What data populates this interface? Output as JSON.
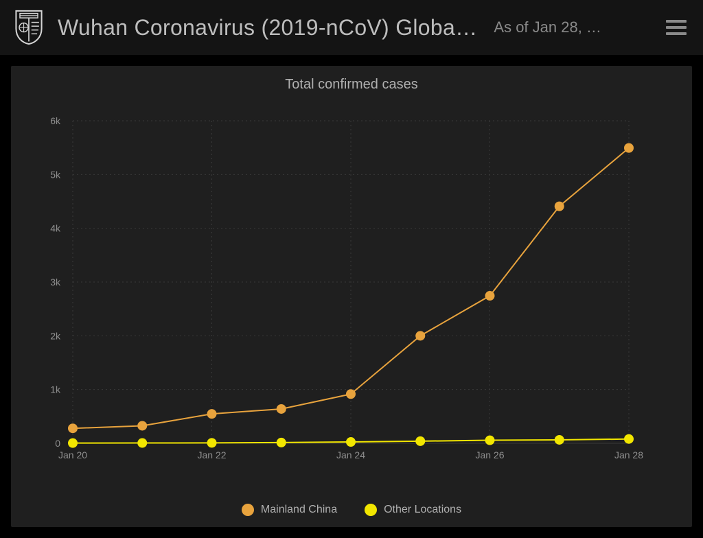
{
  "header": {
    "title": "Wuhan Coronavirus (2019-nCoV) Globa…",
    "subtitle": "As of Jan 28, …"
  },
  "chart": {
    "type": "line",
    "title": "Total confirmed cases",
    "background_color": "#1f1f1f",
    "grid_color": "#3a3a3a",
    "axis_label_color": "#8f8f8f",
    "title_color": "#b0b0b0",
    "title_fontsize": 20,
    "axis_fontsize": 14,
    "x": {
      "categories": [
        "Jan 20",
        "Jan 21",
        "Jan 22",
        "Jan 23",
        "Jan 24",
        "Jan 25",
        "Jan 26",
        "Jan 27",
        "Jan 28"
      ],
      "tick_labels": [
        "Jan 20",
        "Jan 22",
        "Jan 24",
        "Jan 26",
        "Jan 28"
      ],
      "tick_indices": [
        0,
        2,
        4,
        6,
        8
      ]
    },
    "y": {
      "min": 0,
      "max": 6000,
      "ticks": [
        0,
        1000,
        2000,
        3000,
        4000,
        5000,
        6000
      ],
      "tick_labels": [
        "0",
        "1k",
        "2k",
        "3k",
        "4k",
        "5k",
        "6k"
      ]
    },
    "series": [
      {
        "name": "Mainland China",
        "color": "#e8a33d",
        "line_width": 2,
        "marker_radius": 7,
        "data": [
          278,
          326,
          547,
          639,
          916,
          2000,
          2744,
          4409,
          5494
        ]
      },
      {
        "name": "Other Locations",
        "color": "#f2e600",
        "line_width": 2,
        "marker_radius": 7,
        "data": [
          4,
          6,
          8,
          14,
          25,
          40,
          57,
          64,
          80
        ]
      }
    ],
    "legend": {
      "items": [
        "Mainland China",
        "Other Locations"
      ],
      "colors": [
        "#e8a33d",
        "#f2e600"
      ],
      "text_color": "#b0b0b0",
      "fontsize": 16
    }
  }
}
